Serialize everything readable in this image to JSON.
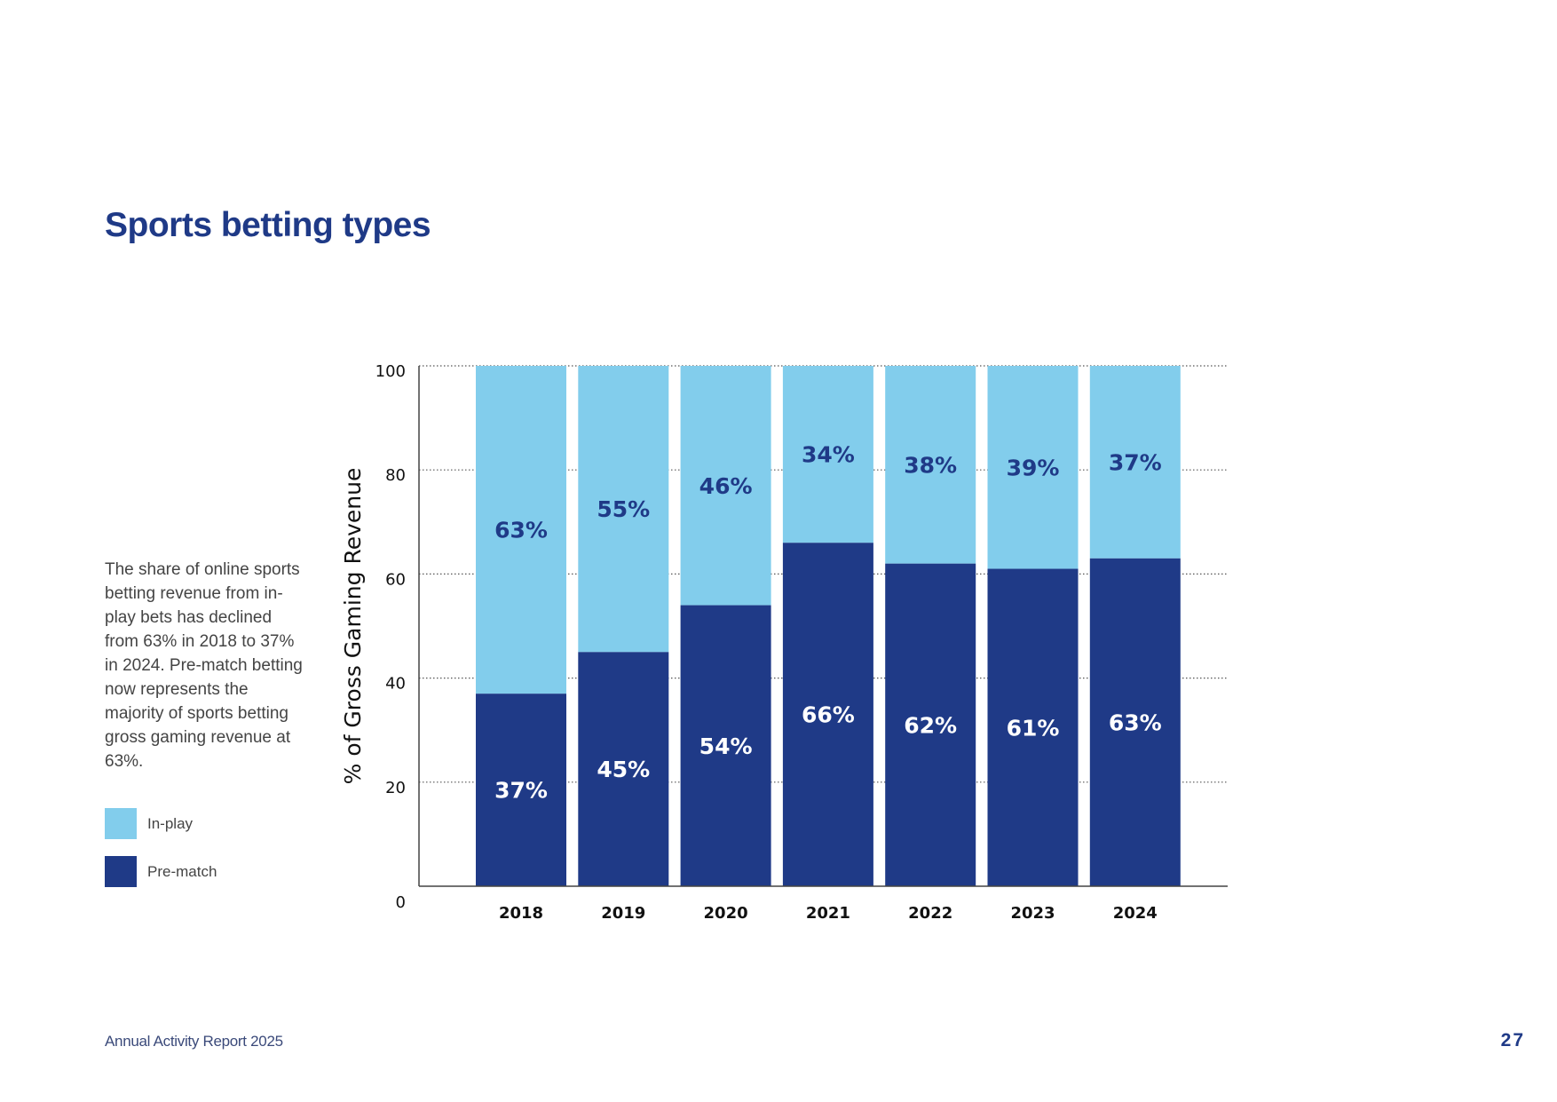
{
  "page": {
    "title": "Sports betting types",
    "description": "The share of online sports betting revenue from in-play bets has declined from 63% in 2018 to 37% in 2024. Pre-match betting now represents the majority of sports betting gross gaming revenue at 63%.",
    "footer": "Annual Activity Report 2025",
    "page_number": "27"
  },
  "chart_data": {
    "type": "bar",
    "stacked": true,
    "title": "Sports betting types",
    "xlabel": "",
    "ylabel": "% of Gross Gaming Revenue",
    "ylim": [
      0,
      100
    ],
    "yticks": [
      0,
      20,
      40,
      60,
      80,
      100
    ],
    "grid": "horizontal dotted",
    "categories": [
      "2018",
      "2019",
      "2020",
      "2021",
      "2022",
      "2023",
      "2024"
    ],
    "series": [
      {
        "name": "Pre-match",
        "color": "#1f3a87",
        "label_color": "#ffffff",
        "values": [
          37,
          45,
          54,
          66,
          62,
          61,
          63
        ],
        "labels": [
          "37%",
          "45%",
          "54%",
          "66%",
          "62%",
          "61%",
          "63%"
        ]
      },
      {
        "name": "In-play",
        "color": "#82cdec",
        "label_color": "#1f3a87",
        "values": [
          63,
          55,
          46,
          34,
          38,
          39,
          37
        ],
        "labels": [
          "63%",
          "55%",
          "46%",
          "34%",
          "38%",
          "39%",
          "37%"
        ]
      }
    ],
    "legend": [
      {
        "name": "In-play",
        "color": "#82cdec"
      },
      {
        "name": "Pre-match",
        "color": "#1f3a87"
      }
    ],
    "legend_position": "left"
  }
}
